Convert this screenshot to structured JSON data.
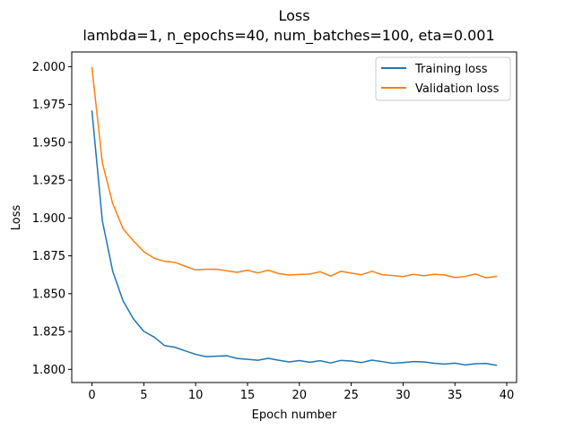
{
  "chart_data": {
    "type": "line",
    "title": "Loss",
    "subtitle": "lambda=1, n_epochs=40, num_batches=100, eta=0.001",
    "xlabel": "Epoch number",
    "ylabel": "Loss",
    "xlim": [
      -1.95,
      40.95
    ],
    "ylim": [
      1.7913,
      2.0097
    ],
    "x_ticks": [
      0,
      5,
      10,
      15,
      20,
      25,
      30,
      35,
      40
    ],
    "x_tick_labels": [
      "0",
      "5",
      "10",
      "15",
      "20",
      "25",
      "30",
      "35",
      "40"
    ],
    "y_ticks": [
      1.8,
      1.825,
      1.85,
      1.875,
      1.9,
      1.925,
      1.95,
      1.975,
      2.0
    ],
    "y_tick_labels": [
      "1.800",
      "1.825",
      "1.850",
      "1.875",
      "1.900",
      "1.925",
      "1.950",
      "1.975",
      "2.000"
    ],
    "grid": false,
    "legend_position": "top-right",
    "x": [
      0,
      1,
      2,
      3,
      4,
      5,
      6,
      7,
      8,
      9,
      10,
      11,
      12,
      13,
      14,
      15,
      16,
      17,
      18,
      19,
      20,
      21,
      22,
      23,
      24,
      25,
      26,
      27,
      28,
      29,
      30,
      31,
      32,
      33,
      34,
      35,
      36,
      37,
      38,
      39
    ],
    "series": [
      {
        "name": "Training loss",
        "color": "#1f77b4",
        "values": [
          1.9706,
          1.8982,
          1.8648,
          1.8452,
          1.8333,
          1.8251,
          1.8213,
          1.8157,
          1.8146,
          1.8122,
          1.8099,
          1.8084,
          1.8087,
          1.809,
          1.8072,
          1.8066,
          1.806,
          1.8073,
          1.806,
          1.8049,
          1.8058,
          1.8047,
          1.8057,
          1.8042,
          1.8059,
          1.8055,
          1.8045,
          1.8061,
          1.8051,
          1.804,
          1.8045,
          1.8051,
          1.8049,
          1.804,
          1.8035,
          1.8041,
          1.8029,
          1.8037,
          1.8039,
          1.8027
        ]
      },
      {
        "name": "Validation loss",
        "color": "#ff7f0e",
        "values": [
          1.9993,
          1.9365,
          1.9096,
          1.8929,
          1.8849,
          1.8777,
          1.8734,
          1.8714,
          1.8707,
          1.8681,
          1.8657,
          1.8661,
          1.8662,
          1.8651,
          1.8641,
          1.8655,
          1.8637,
          1.8655,
          1.8633,
          1.8623,
          1.8627,
          1.8629,
          1.8645,
          1.8616,
          1.8648,
          1.8636,
          1.8625,
          1.8648,
          1.8625,
          1.862,
          1.8613,
          1.8628,
          1.8619,
          1.8628,
          1.8624,
          1.8606,
          1.8614,
          1.863,
          1.8605,
          1.8614
        ]
      }
    ]
  }
}
